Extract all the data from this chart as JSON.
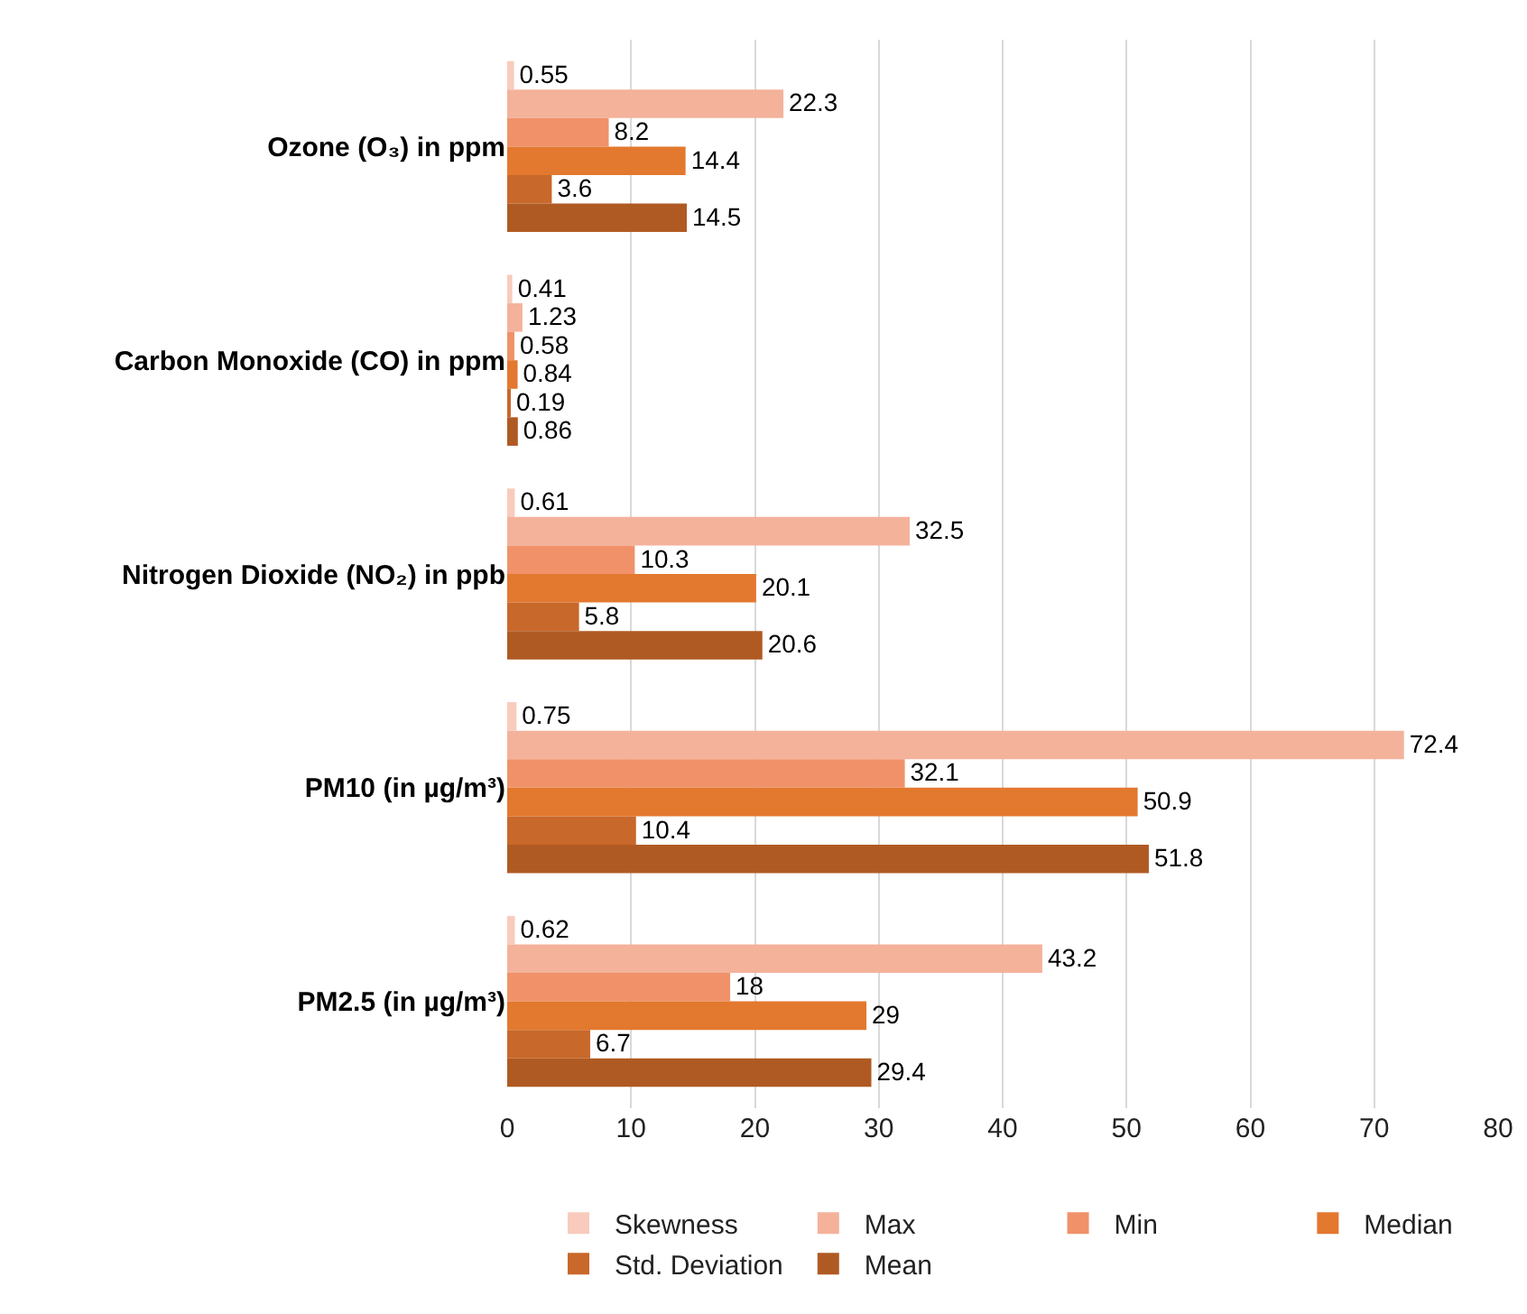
{
  "chart_data": {
    "type": "bar",
    "orientation": "horizontal",
    "categories": [
      "Ozone (O₃) in ppm",
      "Carbon Monoxide (CO) in ppm",
      "Nitrogen Dioxide (NO₂) in ppb",
      "PM10 (in µg/m³)",
      "PM2.5 (in µg/m³)"
    ],
    "series": [
      {
        "name": "Skewness",
        "color": "#f8cbbd",
        "values": [
          0.55,
          0.41,
          0.61,
          0.75,
          0.62
        ]
      },
      {
        "name": "Max",
        "color": "#f4b29b",
        "values": [
          22.3,
          1.23,
          32.5,
          72.4,
          43.2
        ]
      },
      {
        "name": "Min",
        "color": "#f0916a",
        "values": [
          8.2,
          0.58,
          10.3,
          32.1,
          18
        ]
      },
      {
        "name": "Median",
        "color": "#e3782f",
        "values": [
          14.4,
          0.84,
          20.1,
          50.9,
          29
        ]
      },
      {
        "name": "Std. Deviation",
        "color": "#c8682a",
        "values": [
          3.6,
          0.19,
          5.8,
          10.4,
          6.7
        ]
      },
      {
        "name": "Mean",
        "color": "#b05a23",
        "values": [
          14.5,
          0.86,
          20.6,
          51.8,
          29.4
        ]
      }
    ],
    "xlim": [
      0,
      80
    ],
    "xticks": [
      0,
      10,
      20,
      30,
      40,
      50,
      60,
      70,
      80
    ],
    "grid": "x",
    "legend": "bottom",
    "data_labels": true
  }
}
